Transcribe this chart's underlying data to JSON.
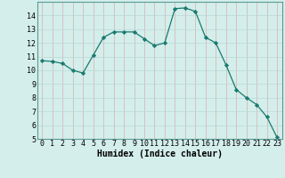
{
  "x": [
    0,
    1,
    2,
    3,
    4,
    5,
    6,
    7,
    8,
    9,
    10,
    11,
    12,
    13,
    14,
    15,
    16,
    17,
    18,
    19,
    20,
    21,
    22,
    23
  ],
  "y": [
    10.7,
    10.65,
    10.5,
    10.0,
    9.8,
    11.1,
    12.4,
    12.8,
    12.8,
    12.8,
    12.3,
    11.8,
    12.0,
    14.5,
    14.55,
    14.3,
    12.4,
    12.0,
    10.4,
    8.6,
    8.0,
    7.5,
    6.6,
    5.1
  ],
  "line_color": "#1a7a6e",
  "marker_color": "#1a7a6e",
  "bg_color": "#d4eeeb",
  "grid_color_major": "#c0dbd8",
  "grid_color_minor": "#e8f5f3",
  "xlabel": "Humidex (Indice chaleur)",
  "xlim": [
    -0.5,
    23.5
  ],
  "ylim": [
    5,
    15
  ],
  "xtick_labels": [
    "0",
    "1",
    "2",
    "3",
    "4",
    "5",
    "6",
    "7",
    "8",
    "9",
    "10",
    "11",
    "12",
    "13",
    "14",
    "15",
    "16",
    "17",
    "18",
    "19",
    "20",
    "21",
    "22",
    "23"
  ],
  "ytick_values": [
    5,
    6,
    7,
    8,
    9,
    10,
    11,
    12,
    13,
    14
  ],
  "font_size": 6,
  "xlabel_fontsize": 7
}
